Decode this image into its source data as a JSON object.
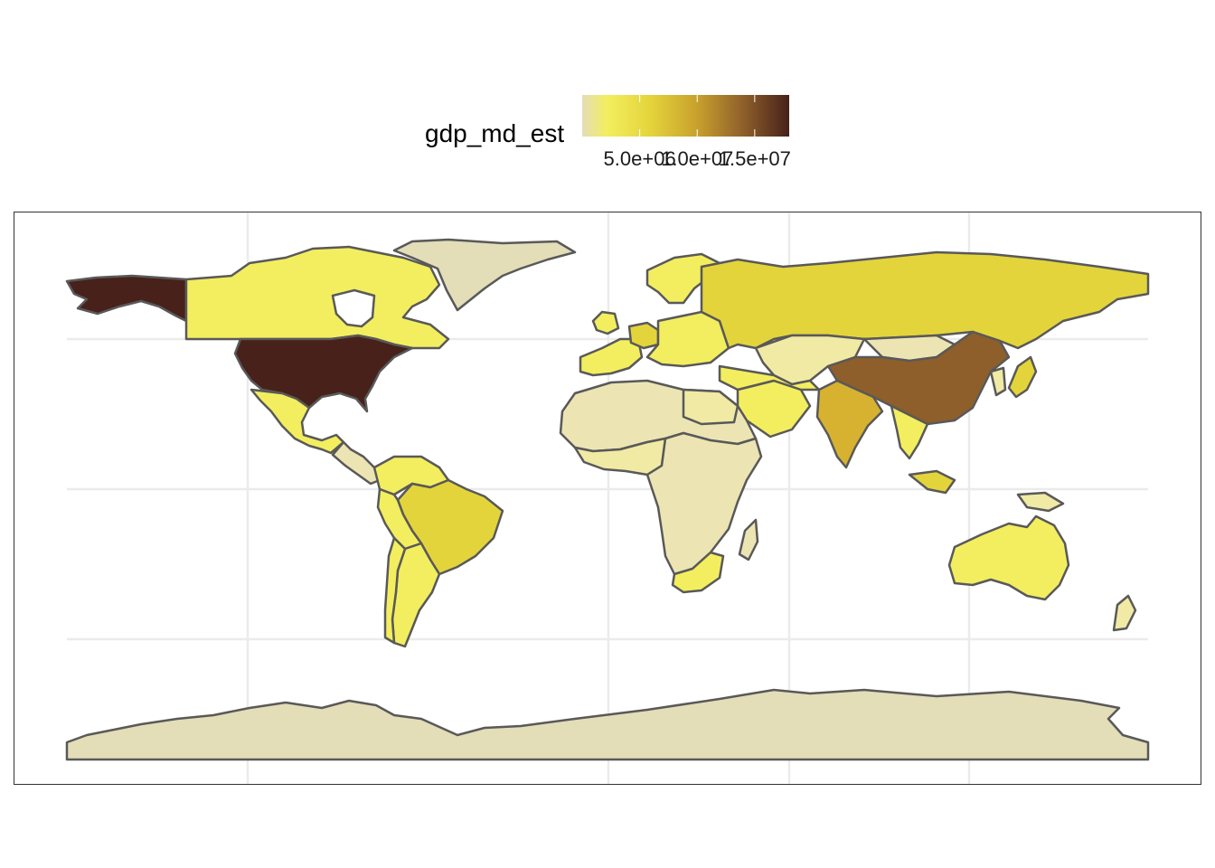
{
  "legend": {
    "title": "gdp_md_est",
    "ticks": [
      {
        "value": 5000000,
        "label": "5.0e+06"
      },
      {
        "value": 10000000,
        "label": "1.0e+07"
      },
      {
        "value": 15000000,
        "label": "1.5e+07"
      }
    ],
    "range": [
      0,
      18000000
    ],
    "gradient_colors": [
      "#E3DDB8",
      "#F3EE5F",
      "#E4D43B",
      "#C9A22D",
      "#8E5F2A",
      "#47211A"
    ]
  },
  "map": {
    "type": "choropleth",
    "variable": "gdp_md_est",
    "projection": "equirectangular",
    "grid": true,
    "lon_breaks": [
      -120,
      -60,
      0,
      60,
      120
    ],
    "lat_breaks": [
      -60,
      -30,
      0,
      30,
      60
    ],
    "regions": [
      {
        "name": "United States",
        "value": 18000000,
        "color": "#47211A"
      },
      {
        "name": "China",
        "value": 11000000,
        "color": "#8E5F2A"
      },
      {
        "name": "India",
        "value": 8000000,
        "color": "#D7B230"
      },
      {
        "name": "Russia",
        "value": 3500000,
        "color": "#E4D43B"
      },
      {
        "name": "Brazil",
        "value": 3200000,
        "color": "#E4D43B"
      },
      {
        "name": "Germany",
        "value": 3900000,
        "color": "#E4D43B"
      },
      {
        "name": "Japan",
        "value": 4900000,
        "color": "#E4D43B"
      },
      {
        "name": "Canada",
        "value": 1600000,
        "color": "#F3EE5F"
      },
      {
        "name": "Mexico",
        "value": 2300000,
        "color": "#F3EE5F"
      },
      {
        "name": "Australia",
        "value": 1200000,
        "color": "#F3EE5F"
      },
      {
        "name": "Indonesia",
        "value": 3000000,
        "color": "#E4D43B"
      },
      {
        "name": "Argentina",
        "value": 900000,
        "color": "#F3EE5F"
      },
      {
        "name": "Greenland",
        "value": 2000,
        "color": "#E3DDB8"
      },
      {
        "name": "Antarctica",
        "value": 800,
        "color": "#E3DDB8"
      },
      {
        "name": "Africa (most countries)",
        "value": 100000,
        "color": "#ECE5B3"
      }
    ]
  }
}
